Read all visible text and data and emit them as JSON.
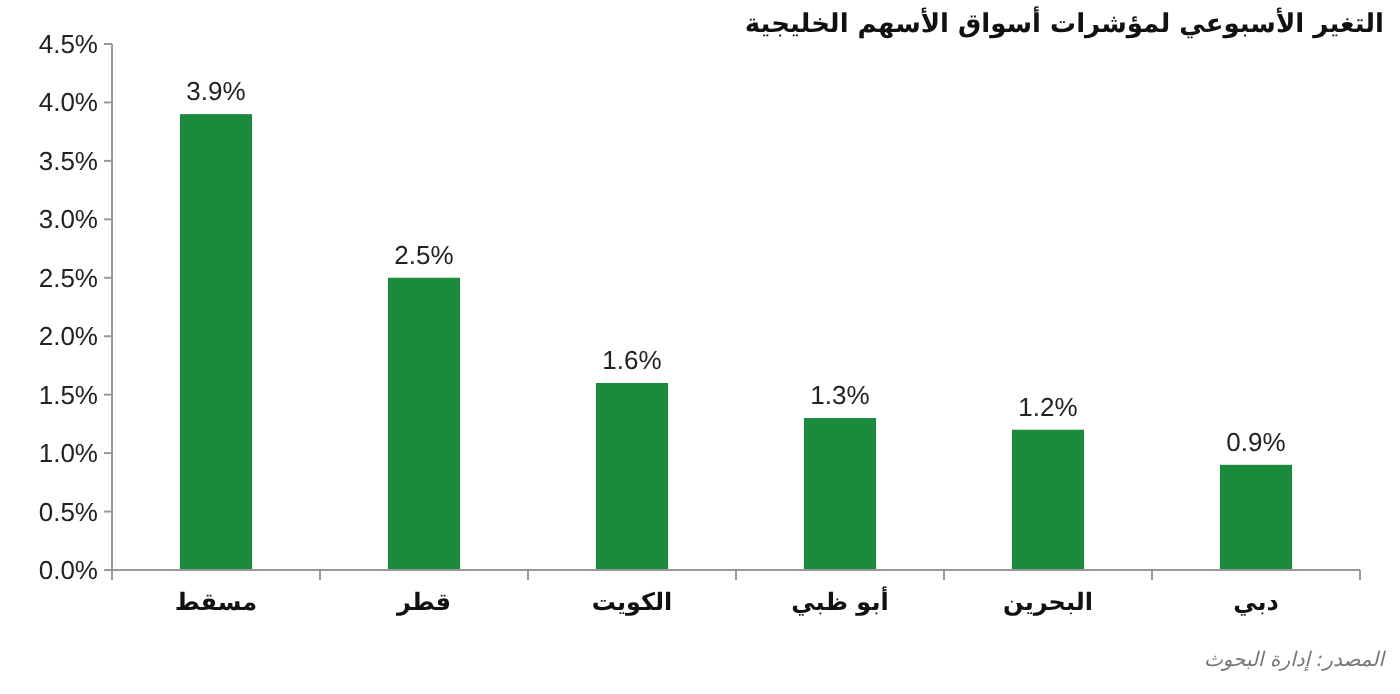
{
  "chart_data": {
    "type": "bar",
    "title": "التغير الأسبوعي لمؤشرات أسواق الأسهم الخليجية",
    "categories": [
      "مسقط",
      "قطر",
      "الكويت",
      "أبو ظبي",
      "البحرين",
      "دبي"
    ],
    "values": [
      3.9,
      2.5,
      1.6,
      1.3,
      1.2,
      0.9
    ],
    "value_labels": [
      "3.9%",
      "2.5%",
      "1.6%",
      "1.3%",
      "1.2%",
      "0.9%"
    ],
    "color": "#1a8a3c",
    "ylim": [
      0,
      4.5
    ],
    "yticks": [
      {
        "value": 0,
        "label": "0.0%"
      },
      {
        "value": 0.5,
        "label": "0.5%"
      },
      {
        "value": 1,
        "label": "1.0%"
      },
      {
        "value": 1.5,
        "label": "1.5%"
      },
      {
        "value": 2,
        "label": "2.0%"
      },
      {
        "value": 2.5,
        "label": "2.5%"
      },
      {
        "value": 3,
        "label": "3.0%"
      },
      {
        "value": 3.5,
        "label": "3.5%"
      },
      {
        "value": 4,
        "label": "4.0%"
      },
      {
        "value": 4.5,
        "label": "4.5%"
      }
    ],
    "grid": false,
    "annotations": [
      "المصدر: إدارة البحوث"
    ]
  }
}
